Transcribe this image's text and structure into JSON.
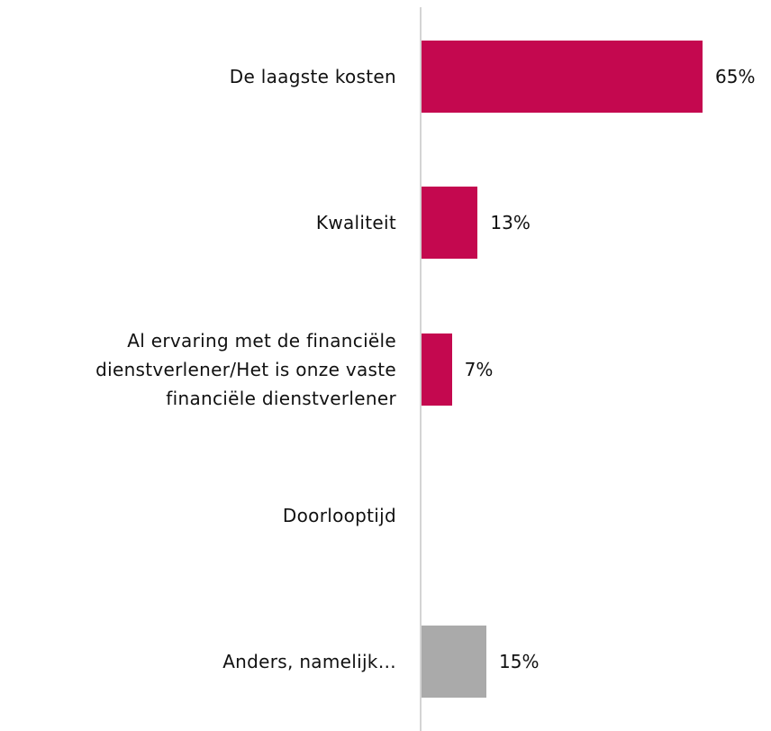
{
  "chart_data": {
    "type": "bar",
    "orientation": "horizontal",
    "categories": [
      "De laagste kosten",
      "Kwaliteit",
      "Al ervaring met de financiële dienstverlener/Het is onze vaste financiële dienstverlener",
      "Doorlooptijd",
      "Anders, namelijk…"
    ],
    "values": [
      65,
      13,
      7,
      null,
      15
    ],
    "value_labels": [
      "65%",
      "13%",
      "7%",
      null,
      "15%"
    ],
    "colors": [
      "#c4084f",
      "#c4084f",
      "#c4084f",
      "#c4084f",
      "#aaaaaa"
    ]
  }
}
